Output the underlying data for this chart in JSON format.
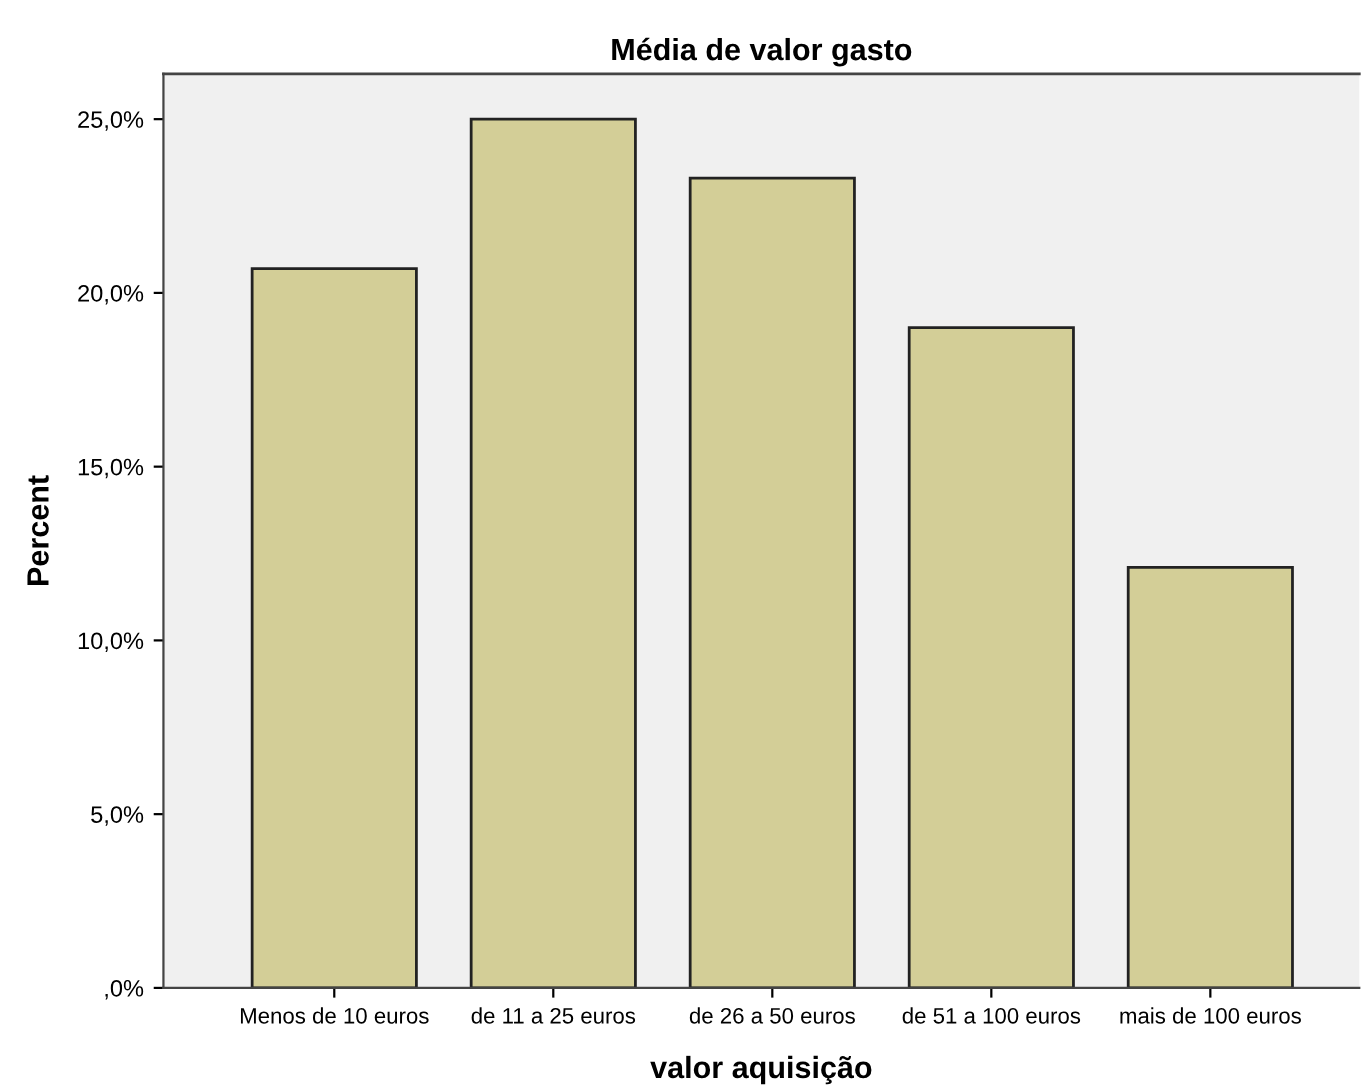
{
  "chart_data": {
    "type": "bar",
    "title": "Média de valor gasto",
    "xlabel": "valor aquisição",
    "ylabel": "Percent",
    "categories": [
      "Menos de 10 euros",
      "de 11 a 25 euros",
      "de 26 a 50 euros",
      "de 51 a 100 euros",
      "mais de 100 euros"
    ],
    "values": [
      20.7,
      25.0,
      23.3,
      19.0,
      12.1
    ],
    "color": "#d3ce97",
    "ylim": [
      0,
      26.3
    ],
    "yticks": [
      {
        "value": 0,
        "label": ",0%"
      },
      {
        "value": 5,
        "label": "5,0%"
      },
      {
        "value": 10,
        "label": "10,0%"
      },
      {
        "value": 15,
        "label": "15,0%"
      },
      {
        "value": 20,
        "label": "20,0%"
      },
      {
        "value": 25,
        "label": "25,0%"
      }
    ],
    "grid": false
  }
}
